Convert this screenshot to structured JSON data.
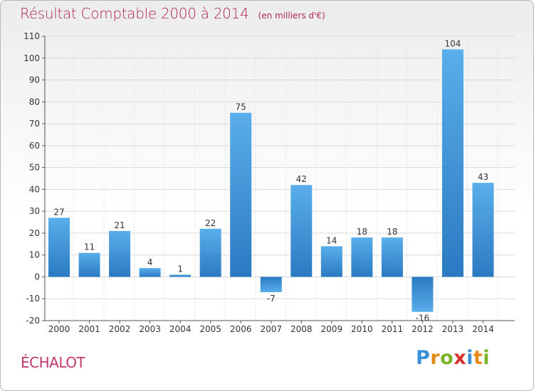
{
  "header": {
    "title": "Résultat Comptable 2000 à 2014",
    "subtitle": "(en milliers d'€)"
  },
  "footer": {
    "commune": "ÉCHALOT",
    "brand_letters": [
      "P",
      "r",
      "o",
      "x",
      "i",
      "t",
      "i"
    ],
    "brand_colors": [
      "#3a8fd6",
      "#e48b18",
      "#7bb32a",
      "#d6312b",
      "#3a8fd6",
      "#e48b18",
      "#7bb32a"
    ]
  },
  "colors": {
    "bar_top": "#5aaeea",
    "bar_bottom": "#2a7ac2",
    "title": "#b0265a"
  },
  "chart_data": {
    "type": "bar",
    "categories": [
      "2000",
      "2001",
      "2002",
      "2003",
      "2004",
      "2005",
      "2006",
      "2007",
      "2008",
      "2009",
      "2010",
      "2011",
      "2012",
      "2013",
      "2014"
    ],
    "values": [
      27,
      11,
      21,
      4,
      1,
      22,
      75,
      -7,
      42,
      14,
      18,
      18,
      -16,
      104,
      43
    ],
    "title": "Résultat Comptable 2000 à 2014",
    "subtitle": "(en milliers d'€)",
    "xlabel": "",
    "ylabel": "",
    "ylim": [
      -20,
      110
    ],
    "yticks": [
      -20,
      -10,
      0,
      10,
      20,
      30,
      40,
      50,
      60,
      70,
      80,
      90,
      100,
      110
    ],
    "grid": true
  }
}
